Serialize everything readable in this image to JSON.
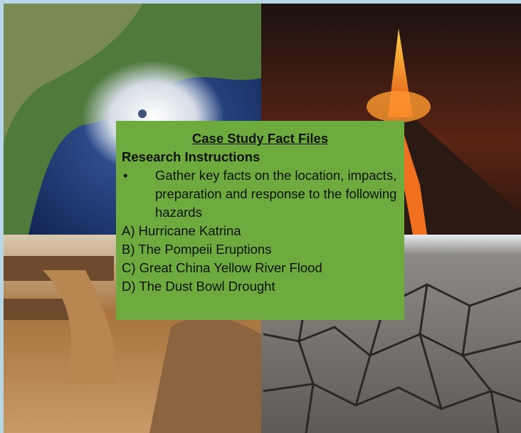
{
  "title": "Case Study Fact Files",
  "subtitle": "Research Instructions",
  "bullets": [
    "Gather key facts on the location, impacts, preparation and response to the following hazards"
  ],
  "items": [
    "A) Hurricane Katrina",
    "B) The Pompeii Eruptions",
    "C) Great China Yellow River Flood",
    "D) The Dust Bowl Drought"
  ]
}
